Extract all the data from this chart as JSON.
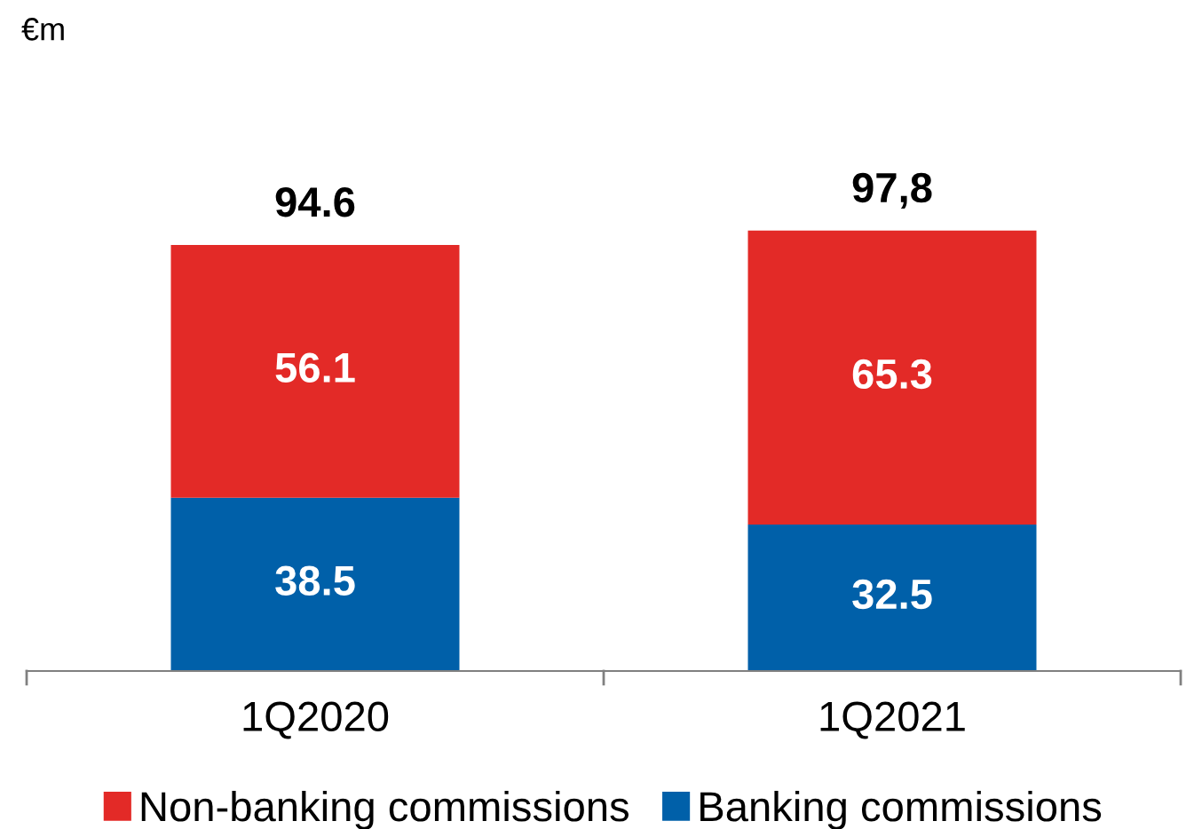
{
  "chart_data": {
    "type": "bar",
    "stacked": true,
    "annotations": [
      "€m"
    ],
    "categories": [
      "1Q2020",
      "1Q2021"
    ],
    "series": [
      {
        "name": "Banking commissions",
        "color": "#0060a9",
        "values": [
          38.5,
          32.5
        ]
      },
      {
        "name": "Non-banking commissions",
        "color": "#e32a27",
        "values": [
          56.1,
          65.3
        ]
      }
    ],
    "data_labels": true,
    "totals": [
      "94.6",
      "97,8"
    ],
    "legend": "bottom",
    "grid": false
  }
}
